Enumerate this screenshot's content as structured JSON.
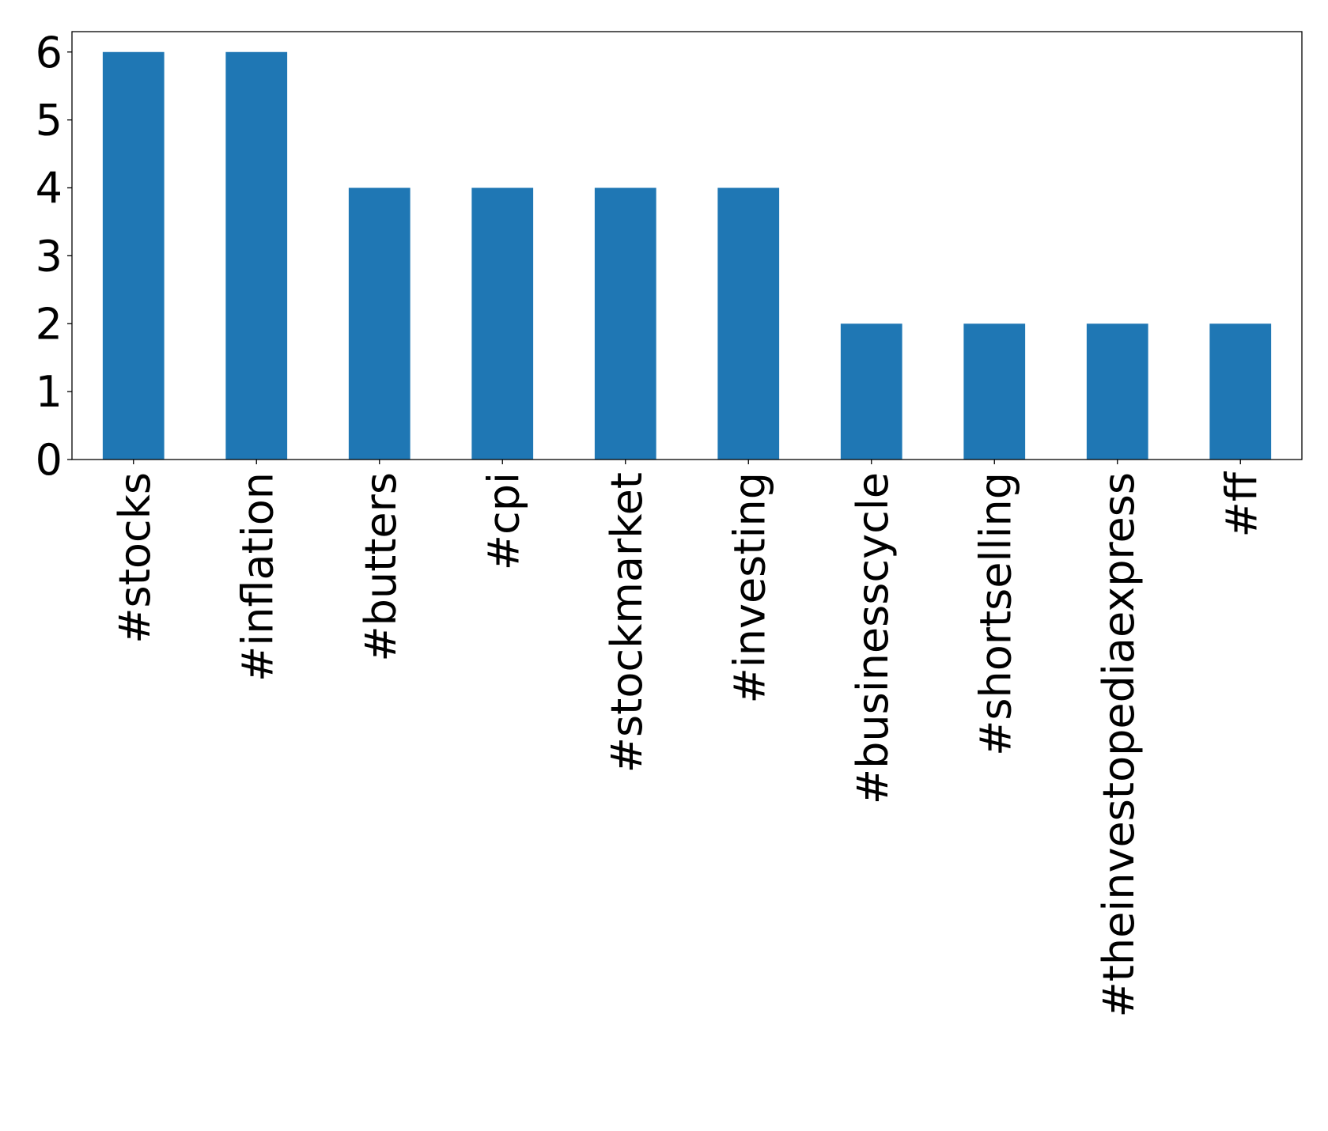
{
  "chart_data": {
    "type": "bar",
    "title": "",
    "xlabel": "",
    "ylabel": "",
    "categories": [
      "#stocks",
      "#inflation",
      "#butters",
      "#cpi",
      "#stockmarket",
      "#investing",
      "#businesscycle",
      "#shortselling",
      "#theinvestopediaexpress",
      "#ff"
    ],
    "values": [
      6,
      6,
      4,
      4,
      4,
      4,
      2,
      2,
      2,
      2
    ],
    "ylim": [
      0,
      6.3
    ],
    "yticks": [
      0,
      1,
      2,
      3,
      4,
      5,
      6
    ],
    "grid": false,
    "legend": "none",
    "bar_color": "#1f77b4"
  }
}
